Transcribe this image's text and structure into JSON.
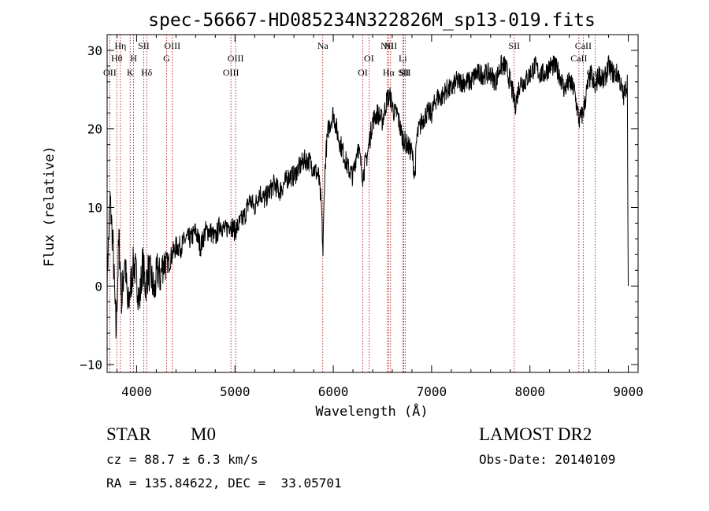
{
  "chart_data": {
    "type": "line",
    "title": "spec-56667-HD085234N322826M_sp13-019.fits",
    "xlabel": "Wavelength (Å)",
    "ylabel": "Flux (relative)",
    "xlim": [
      3700,
      9100
    ],
    "ylim": [
      -11,
      32
    ],
    "xticks": [
      4000,
      5000,
      6000,
      7000,
      8000,
      9000
    ],
    "yticks": [
      -10,
      0,
      10,
      20,
      30
    ],
    "ytick_labels": [
      "−10",
      "0",
      "10",
      "20",
      "30"
    ],
    "grid": false,
    "colors": {
      "spectrum": "#000000",
      "lines": "#aa0000"
    },
    "series": [
      {
        "x": [
          3700,
          3730,
          3760,
          3790,
          3820,
          3850,
          3880,
          3910,
          3940,
          3970,
          4000,
          4030,
          4060,
          4090,
          4120,
          4150,
          4180,
          4210,
          4240,
          4270,
          4300,
          4330,
          4360,
          4400,
          4450,
          4500,
          4550,
          4600,
          4650,
          4700,
          4750,
          4800,
          4850,
          4900,
          4950,
          5000,
          5050,
          5100,
          5150,
          5200,
          5250,
          5300,
          5350,
          5400,
          5450,
          5500,
          5550,
          5600,
          5650,
          5700,
          5750,
          5800,
          5850,
          5880,
          5895,
          5910,
          5925,
          5950,
          6000,
          6050,
          6100,
          6150,
          6200,
          6250,
          6300,
          6350,
          6400,
          6450,
          6500,
          6550,
          6580,
          6620,
          6650,
          6700,
          6750,
          6800,
          6830,
          6850,
          6900,
          6950,
          7000,
          7050,
          7100,
          7150,
          7200,
          7250,
          7300,
          7350,
          7400,
          7450,
          7500,
          7550,
          7600,
          7650,
          7700,
          7750,
          7800,
          7850,
          7900,
          7950,
          8000,
          8050,
          8100,
          8150,
          8200,
          8250,
          8300,
          8350,
          8400,
          8450,
          8500,
          8540,
          8580,
          8620,
          8660,
          8700,
          8750,
          8800,
          8850,
          8900,
          8950,
          8990,
          9000
        ],
        "y": [
          1,
          11,
          5,
          -6,
          6,
          -2,
          4,
          -3,
          0,
          3,
          1,
          -2,
          3,
          0,
          2,
          1,
          -1,
          2,
          1,
          3,
          3,
          3,
          4,
          5,
          5,
          6,
          6,
          7,
          5,
          7,
          7,
          6,
          8,
          7,
          8,
          7,
          8,
          9,
          11,
          10,
          12,
          11,
          12,
          13,
          12,
          13,
          14,
          14,
          15,
          16,
          16,
          15,
          14,
          10,
          4,
          13,
          17,
          20,
          22,
          19,
          17,
          15,
          14,
          18,
          14,
          17,
          21,
          22,
          21,
          24,
          24,
          22,
          22,
          19,
          18,
          17,
          14,
          19,
          21,
          22,
          22,
          24,
          24,
          25,
          25,
          26,
          26,
          26,
          26,
          27,
          27,
          27,
          27,
          26,
          28,
          28,
          26,
          23,
          26,
          26,
          27,
          28,
          27,
          27,
          28,
          28,
          27,
          25,
          26,
          25,
          21,
          22,
          25,
          27,
          25,
          27,
          26,
          28,
          27,
          27,
          24,
          26,
          0
        ]
      }
    ],
    "line_labels": [
      {
        "w": 3727,
        "label": "OII",
        "row": 3
      },
      {
        "w": 3798,
        "label": "Hθ",
        "row": 2
      },
      {
        "w": 3835,
        "label": "Hη",
        "row": 1
      },
      {
        "w": 3934,
        "label": "K",
        "row": 3
      },
      {
        "w": 3969,
        "label": "H",
        "row": 2
      },
      {
        "w": 4072,
        "label": "SII",
        "row": 1
      },
      {
        "w": 4102,
        "label": "Hδ",
        "row": 3
      },
      {
        "w": 4305,
        "label": "G",
        "row": 2
      },
      {
        "w": 4363,
        "label": "OIII",
        "row": 1
      },
      {
        "w": 4959,
        "label": "OIII",
        "row": 3
      },
      {
        "w": 5007,
        "label": "OIII",
        "row": 2
      },
      {
        "w": 5893,
        "label": "Na",
        "row": 1
      },
      {
        "w": 6300,
        "label": "OI",
        "row": 3
      },
      {
        "w": 6363,
        "label": "OI",
        "row": 2
      },
      {
        "w": 6548,
        "label": "NII",
        "row": 1
      },
      {
        "w": 6563,
        "label": "Hα",
        "row": 3
      },
      {
        "w": 6583,
        "label": "NII",
        "row": 1
      },
      {
        "w": 6707,
        "label": "Li",
        "row": 2
      },
      {
        "w": 6716,
        "label": "SII",
        "row": 3
      },
      {
        "w": 6731,
        "label": "SII",
        "row": 3
      },
      {
        "w": 7840,
        "label": "SII",
        "row": 1
      },
      {
        "w": 8498,
        "label": "CaII",
        "row": 2
      },
      {
        "w": 8542,
        "label": "CaII",
        "row": 1
      },
      {
        "w": 8662,
        "label": "CaII",
        "row": 3
      }
    ]
  },
  "info": {
    "object_class": "STAR",
    "subclass": "M0",
    "survey": "LAMOST DR2",
    "redshift": "cz = 88.7 ± 6.3 km/s",
    "obs_date": "Obs-Date: 20140109",
    "coords": "RA = 135.84622, DEC =  33.05701"
  }
}
